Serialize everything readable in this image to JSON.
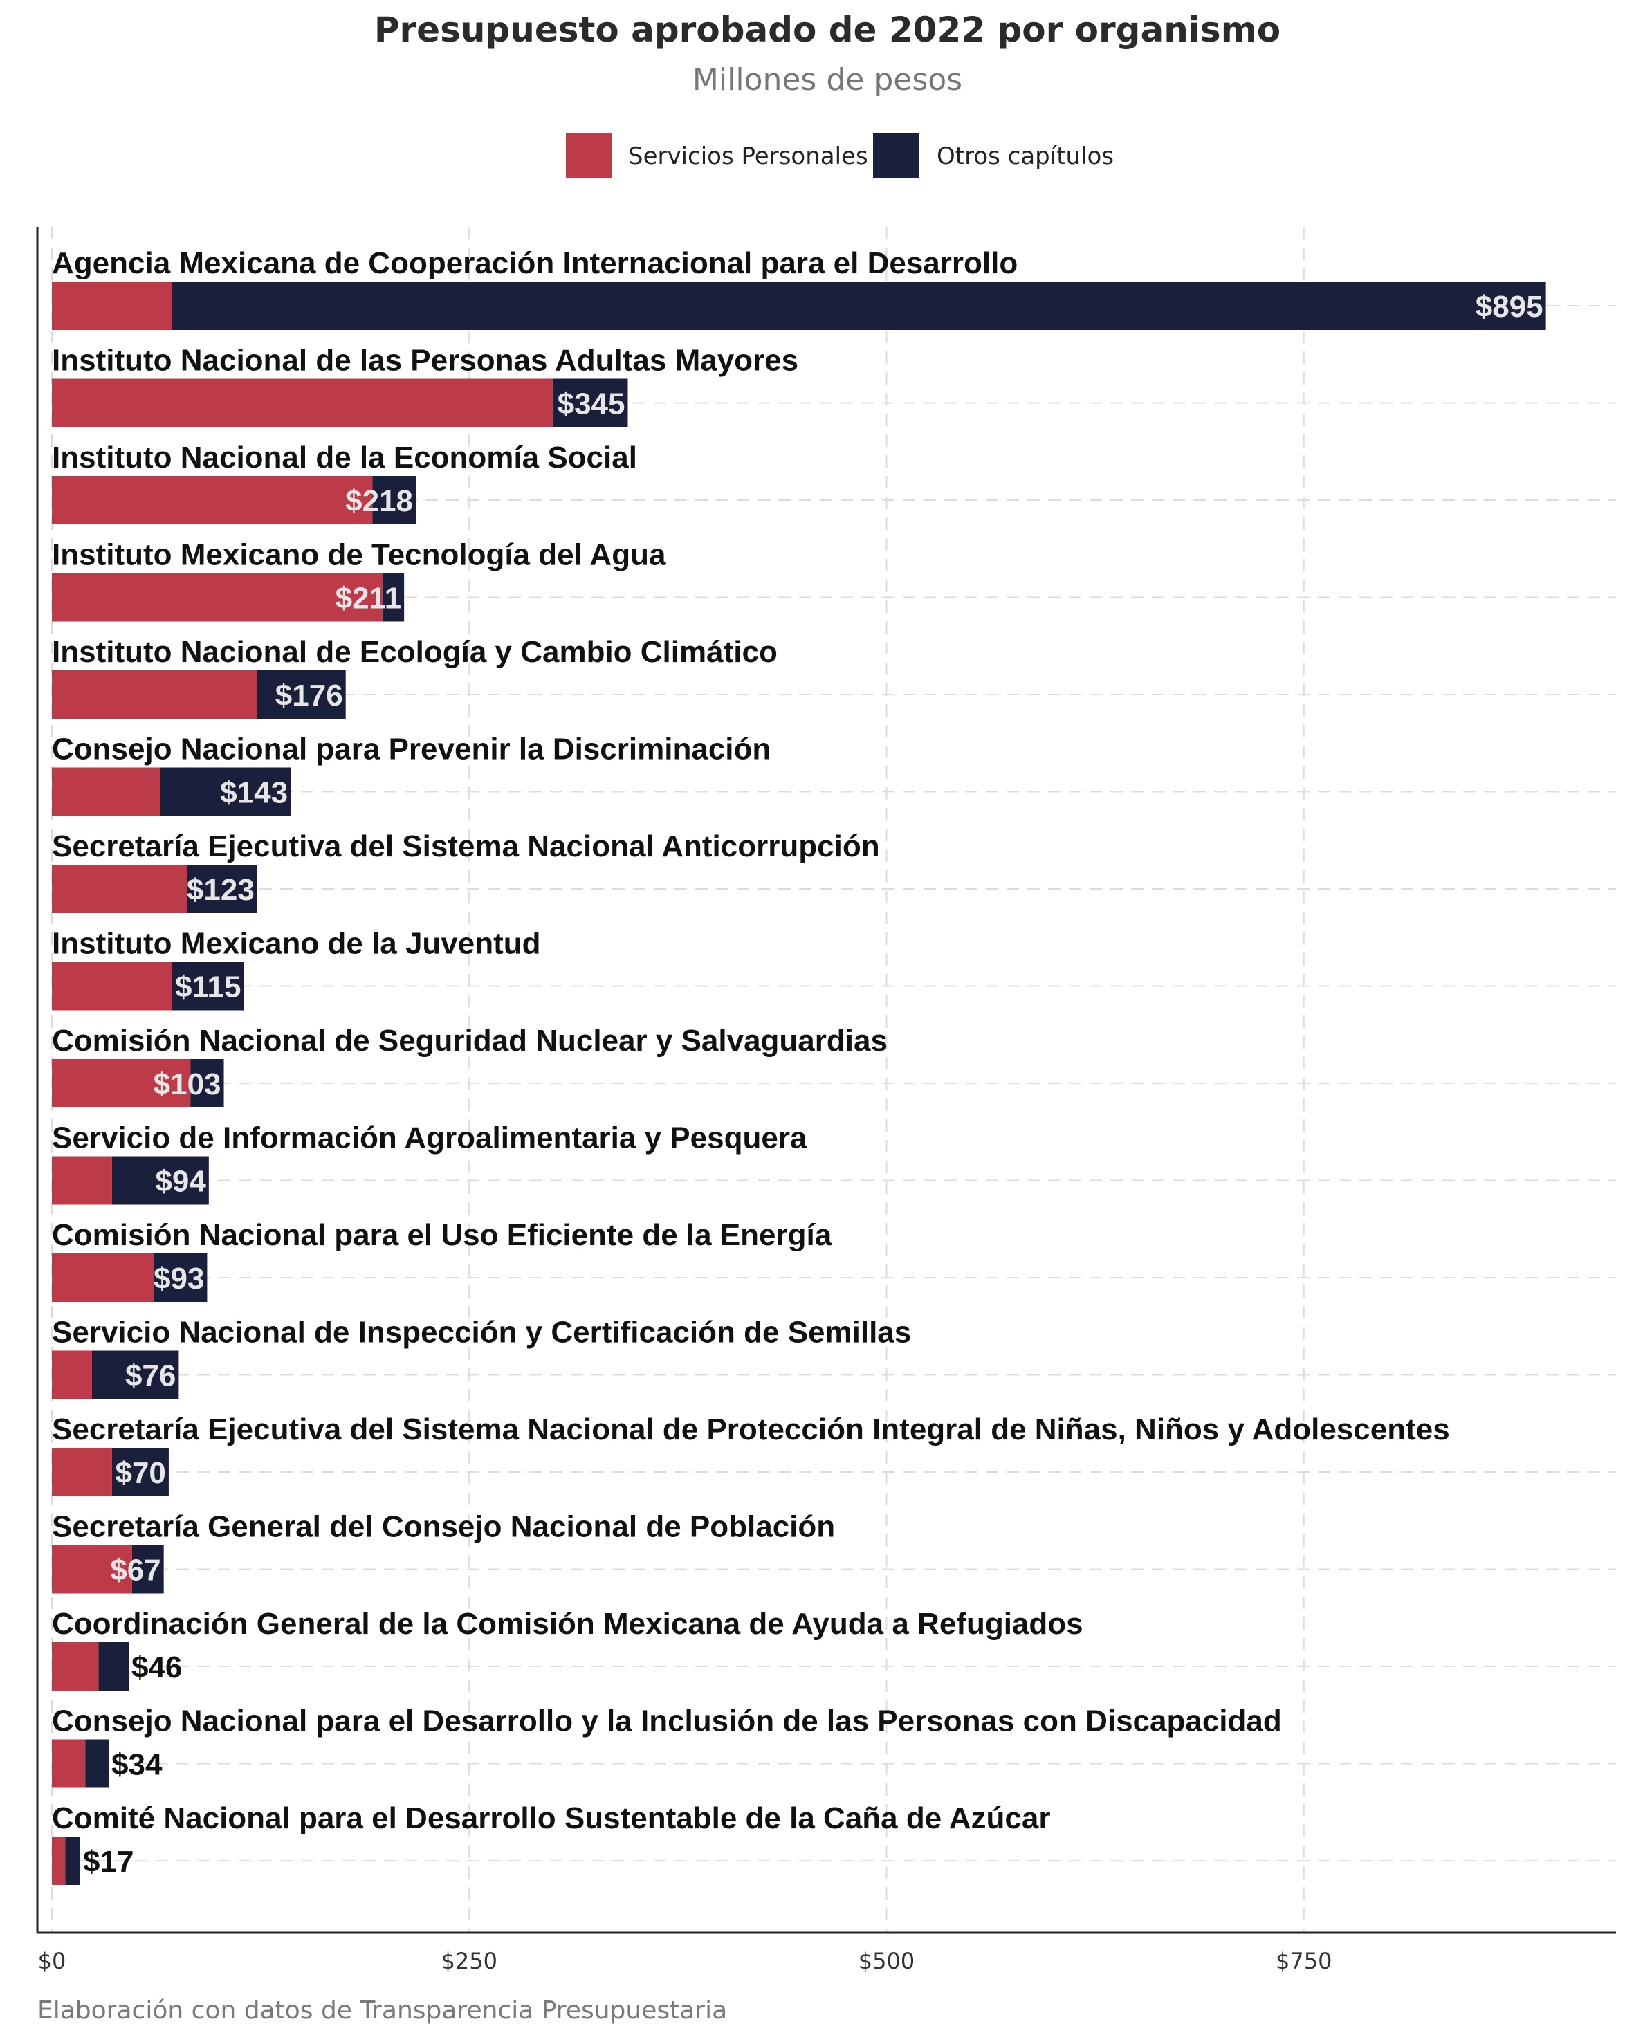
{
  "colors": {
    "personal": "#bd3a48",
    "otros": "#1a1f3b",
    "grid": "#dcdcdc",
    "label_inside": "#e6e6e6",
    "label_outside": "#111111"
  },
  "chart_data": {
    "type": "bar",
    "orientation": "horizontal",
    "stacked": true,
    "title": "Presupuesto aprobado de 2022 por organismo",
    "subtitle": "Millones de pesos",
    "caption": "Elaboración con datos de Transparencia Presupuestaria",
    "legend": {
      "position": "top",
      "entries": [
        "Servicios Personales",
        "Otros capítulos"
      ]
    },
    "xlim": [
      0,
      940
    ],
    "xticks": [
      0,
      250,
      500,
      750
    ],
    "xtick_labels": [
      "$0",
      "$250",
      "$500",
      "$750"
    ],
    "grid": true,
    "categories": [
      "Agencia Mexicana de Cooperación Internacional para el Desarrollo",
      "Instituto Nacional de las Personas Adultas Mayores",
      "Instituto Nacional de la Economía Social",
      "Instituto Mexicano de Tecnología del Agua",
      "Instituto Nacional de Ecología y Cambio Climático",
      "Consejo Nacional para Prevenir la Discriminación",
      "Secretaría Ejecutiva del Sistema Nacional Anticorrupción",
      "Instituto Mexicano de la Juventud",
      "Comisión Nacional de Seguridad Nuclear y Salvaguardias",
      "Servicio de Información Agroalimentaria y Pesquera",
      "Comisión Nacional para el Uso Eficiente de la Energía",
      "Servicio Nacional de Inspección y Certificación de Semillas",
      "Secretaría Ejecutiva del Sistema Nacional de Protección Integral de Niñas, Niños y Adolescentes",
      "Secretaría General del Consejo Nacional de Población",
      "Coordinación General de la Comisión Mexicana de Ayuda a Refugiados",
      "Consejo Nacional para el Desarrollo y la Inclusión de las Personas con Discapacidad",
      "Comité Nacional para el Desarrollo Sustentable de la Caña de Azúcar"
    ],
    "series": [
      {
        "name": "Servicios Personales",
        "values": [
          72,
          300,
          192,
          198,
          123,
          65,
          81,
          72,
          83,
          36,
          61,
          24,
          36,
          48,
          28,
          20,
          8
        ]
      },
      {
        "name": "Otros capítulos",
        "values": [
          823,
          45,
          26,
          13,
          53,
          78,
          42,
          43,
          20,
          58,
          32,
          52,
          34,
          19,
          18,
          14,
          9
        ]
      }
    ],
    "totals": [
      895,
      345,
      218,
      211,
      176,
      143,
      123,
      115,
      103,
      94,
      93,
      76,
      70,
      67,
      46,
      34,
      17
    ],
    "total_labels": [
      "$895",
      "$345",
      "$218",
      "$211",
      "$176",
      "$143",
      "$123",
      "$115",
      "$103",
      "$94",
      "$93",
      "$76",
      "$70",
      "$67",
      "$46",
      "$34",
      "$17"
    ]
  }
}
